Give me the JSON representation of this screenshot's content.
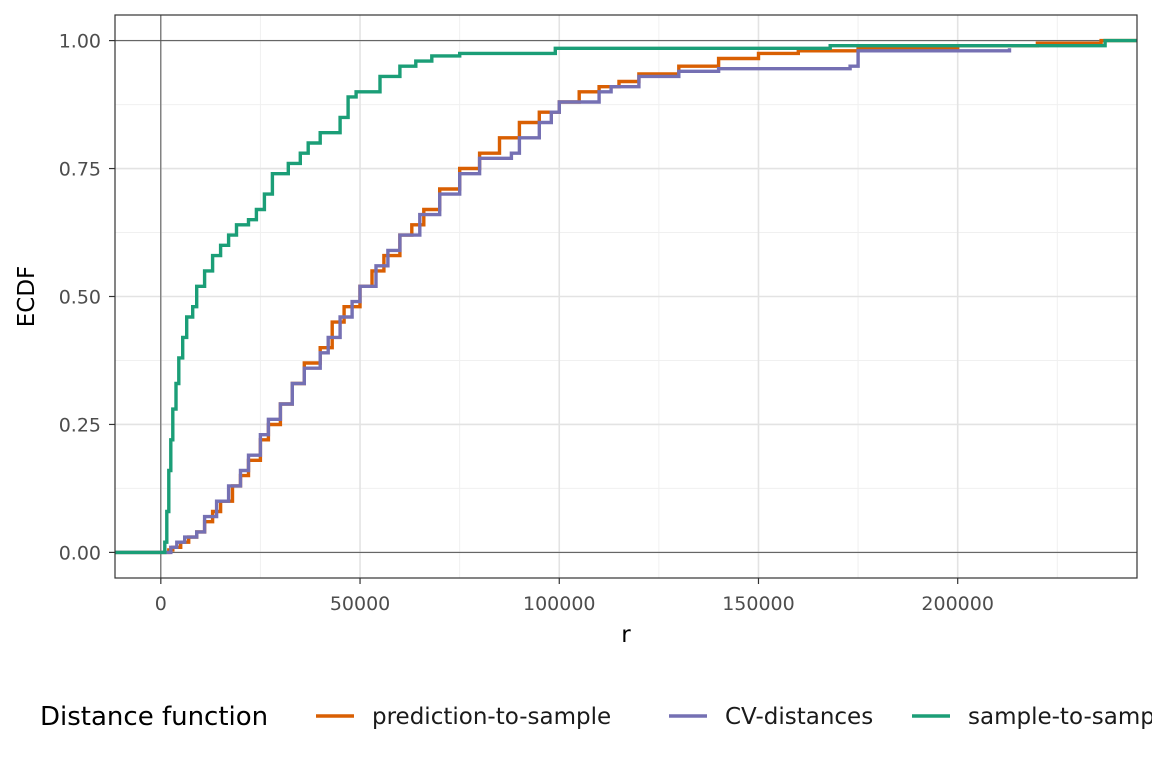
{
  "chart_data": {
    "type": "line",
    "xlabel": "r",
    "ylabel": "ECDF",
    "xlim": [
      -11500,
      245000
    ],
    "ylim": [
      -0.05,
      1.05
    ],
    "x_ticks": [
      {
        "value": 0,
        "label": "0"
      },
      {
        "value": 50000,
        "label": "50000"
      },
      {
        "value": 100000,
        "label": "100000"
      },
      {
        "value": 150000,
        "label": "150000"
      },
      {
        "value": 200000,
        "label": "200000"
      }
    ],
    "y_ticks": [
      {
        "value": 0.0,
        "label": "0.00"
      },
      {
        "value": 0.25,
        "label": "0.25"
      },
      {
        "value": 0.5,
        "label": "0.50"
      },
      {
        "value": 0.75,
        "label": "0.75"
      },
      {
        "value": 1.0,
        "label": "1.00"
      }
    ],
    "x_minor_ticks": [
      25000,
      75000,
      125000,
      175000,
      225000
    ],
    "y_minor_ticks": [
      0.125,
      0.375,
      0.625,
      0.875
    ],
    "grid": true,
    "reference_lines": {
      "x": 0,
      "y": [
        0,
        1
      ]
    },
    "legend": {
      "title": "Distance function",
      "position": "bottom",
      "items": [
        "prediction-to-sample",
        "CV-distances",
        "sample-to-sample"
      ]
    },
    "series": [
      {
        "name": "prediction-to-sample",
        "color": "#D95F02",
        "points": [
          [
            -11500,
            0
          ],
          [
            1000,
            0
          ],
          [
            2000,
            0.005
          ],
          [
            3000,
            0.01
          ],
          [
            5000,
            0.02
          ],
          [
            7000,
            0.03
          ],
          [
            9000,
            0.04
          ],
          [
            11000,
            0.06
          ],
          [
            13000,
            0.08
          ],
          [
            15000,
            0.1
          ],
          [
            18000,
            0.13
          ],
          [
            20000,
            0.15
          ],
          [
            22000,
            0.18
          ],
          [
            25000,
            0.22
          ],
          [
            27000,
            0.25
          ],
          [
            30000,
            0.29
          ],
          [
            33000,
            0.33
          ],
          [
            36000,
            0.37
          ],
          [
            40000,
            0.4
          ],
          [
            43000,
            0.45
          ],
          [
            46000,
            0.48
          ],
          [
            50000,
            0.52
          ],
          [
            53000,
            0.55
          ],
          [
            56000,
            0.58
          ],
          [
            60000,
            0.62
          ],
          [
            63000,
            0.64
          ],
          [
            66000,
            0.67
          ],
          [
            70000,
            0.71
          ],
          [
            75000,
            0.75
          ],
          [
            80000,
            0.78
          ],
          [
            85000,
            0.81
          ],
          [
            90000,
            0.84
          ],
          [
            95000,
            0.86
          ],
          [
            100000,
            0.88
          ],
          [
            105000,
            0.9
          ],
          [
            110000,
            0.91
          ],
          [
            115000,
            0.92
          ],
          [
            120000,
            0.935
          ],
          [
            130000,
            0.95
          ],
          [
            140000,
            0.965
          ],
          [
            150000,
            0.975
          ],
          [
            160000,
            0.98
          ],
          [
            175000,
            0.985
          ],
          [
            200000,
            0.99
          ],
          [
            220000,
            0.995
          ],
          [
            236000,
            1.0
          ],
          [
            245000,
            1.0
          ]
        ]
      },
      {
        "name": "CV-distances",
        "color": "#7570B3",
        "points": [
          [
            -11500,
            0
          ],
          [
            1500,
            0
          ],
          [
            2500,
            0.01
          ],
          [
            4000,
            0.02
          ],
          [
            6000,
            0.03
          ],
          [
            9000,
            0.04
          ],
          [
            11000,
            0.07
          ],
          [
            14000,
            0.1
          ],
          [
            17000,
            0.13
          ],
          [
            20000,
            0.16
          ],
          [
            22000,
            0.19
          ],
          [
            25000,
            0.23
          ],
          [
            27000,
            0.26
          ],
          [
            30000,
            0.29
          ],
          [
            33000,
            0.33
          ],
          [
            36000,
            0.36
          ],
          [
            40000,
            0.39
          ],
          [
            42000,
            0.42
          ],
          [
            45000,
            0.46
          ],
          [
            48000,
            0.49
          ],
          [
            50000,
            0.52
          ],
          [
            54000,
            0.56
          ],
          [
            57000,
            0.59
          ],
          [
            60000,
            0.62
          ],
          [
            65000,
            0.66
          ],
          [
            70000,
            0.7
          ],
          [
            75000,
            0.74
          ],
          [
            80000,
            0.77
          ],
          [
            88000,
            0.78
          ],
          [
            90000,
            0.81
          ],
          [
            95000,
            0.84
          ],
          [
            98000,
            0.86
          ],
          [
            100000,
            0.88
          ],
          [
            105000,
            0.88
          ],
          [
            110000,
            0.9
          ],
          [
            113000,
            0.91
          ],
          [
            120000,
            0.93
          ],
          [
            130000,
            0.94
          ],
          [
            140000,
            0.945
          ],
          [
            168000,
            0.945
          ],
          [
            173000,
            0.95
          ],
          [
            175000,
            0.98
          ],
          [
            213000,
            0.985
          ]
        ]
      },
      {
        "name": "sample-to-sample",
        "color": "#1B9E77",
        "points": [
          [
            -11500,
            0
          ],
          [
            500,
            0
          ],
          [
            1000,
            0.02
          ],
          [
            1500,
            0.08
          ],
          [
            2000,
            0.16
          ],
          [
            2500,
            0.22
          ],
          [
            3000,
            0.28
          ],
          [
            3800,
            0.33
          ],
          [
            4500,
            0.38
          ],
          [
            5500,
            0.42
          ],
          [
            6500,
            0.46
          ],
          [
            8000,
            0.48
          ],
          [
            9000,
            0.52
          ],
          [
            11000,
            0.55
          ],
          [
            13000,
            0.58
          ],
          [
            15000,
            0.6
          ],
          [
            17000,
            0.62
          ],
          [
            19000,
            0.64
          ],
          [
            22000,
            0.65
          ],
          [
            24000,
            0.67
          ],
          [
            26000,
            0.7
          ],
          [
            28000,
            0.74
          ],
          [
            32000,
            0.76
          ],
          [
            35000,
            0.78
          ],
          [
            37000,
            0.8
          ],
          [
            40000,
            0.82
          ],
          [
            45000,
            0.85
          ],
          [
            47000,
            0.89
          ],
          [
            49000,
            0.9
          ],
          [
            55000,
            0.93
          ],
          [
            60000,
            0.95
          ],
          [
            64000,
            0.96
          ],
          [
            68000,
            0.97
          ],
          [
            75000,
            0.975
          ],
          [
            99000,
            0.985
          ],
          [
            140000,
            0.985
          ],
          [
            168000,
            0.99
          ],
          [
            237000,
            1.0
          ],
          [
            245000,
            1.0
          ]
        ]
      }
    ]
  }
}
